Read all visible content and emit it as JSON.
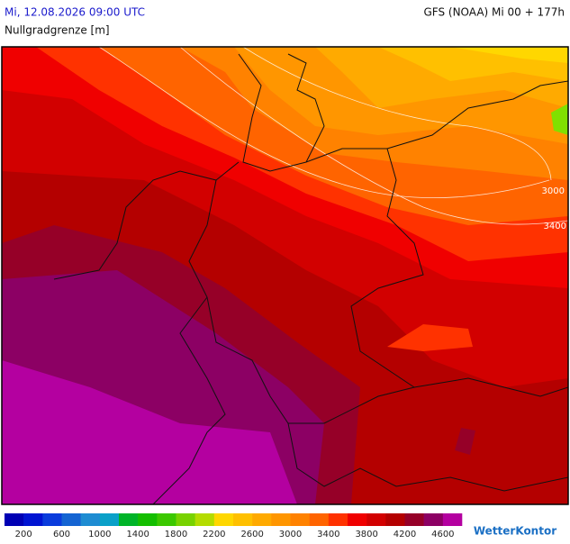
{
  "header": {
    "datetime": "Mi, 12.08.2026 09:00 UTC",
    "model": "GFS (NOAA) Mi 00 + 177h",
    "variable": "Nullgradgrenze [m]"
  },
  "map": {
    "contour_labels": [
      "3000",
      "3400"
    ]
  },
  "legend": {
    "colors": [
      "#0000b4",
      "#0014d2",
      "#0a3cdc",
      "#1464d2",
      "#1e8cd2",
      "#0aa0c8",
      "#00b428",
      "#14be00",
      "#3cc800",
      "#78d200",
      "#b4dc00",
      "#ffd700",
      "#ffc000",
      "#ffaa00",
      "#ff9600",
      "#ff8200",
      "#ff6400",
      "#ff3200",
      "#f00000",
      "#d20000",
      "#b40000",
      "#960028",
      "#8c0064",
      "#b400a0"
    ],
    "labels": [
      200,
      600,
      1000,
      1400,
      1800,
      2200,
      2600,
      3000,
      3400,
      3800,
      4200,
      4600
    ]
  },
  "brand": "WetterKontor"
}
